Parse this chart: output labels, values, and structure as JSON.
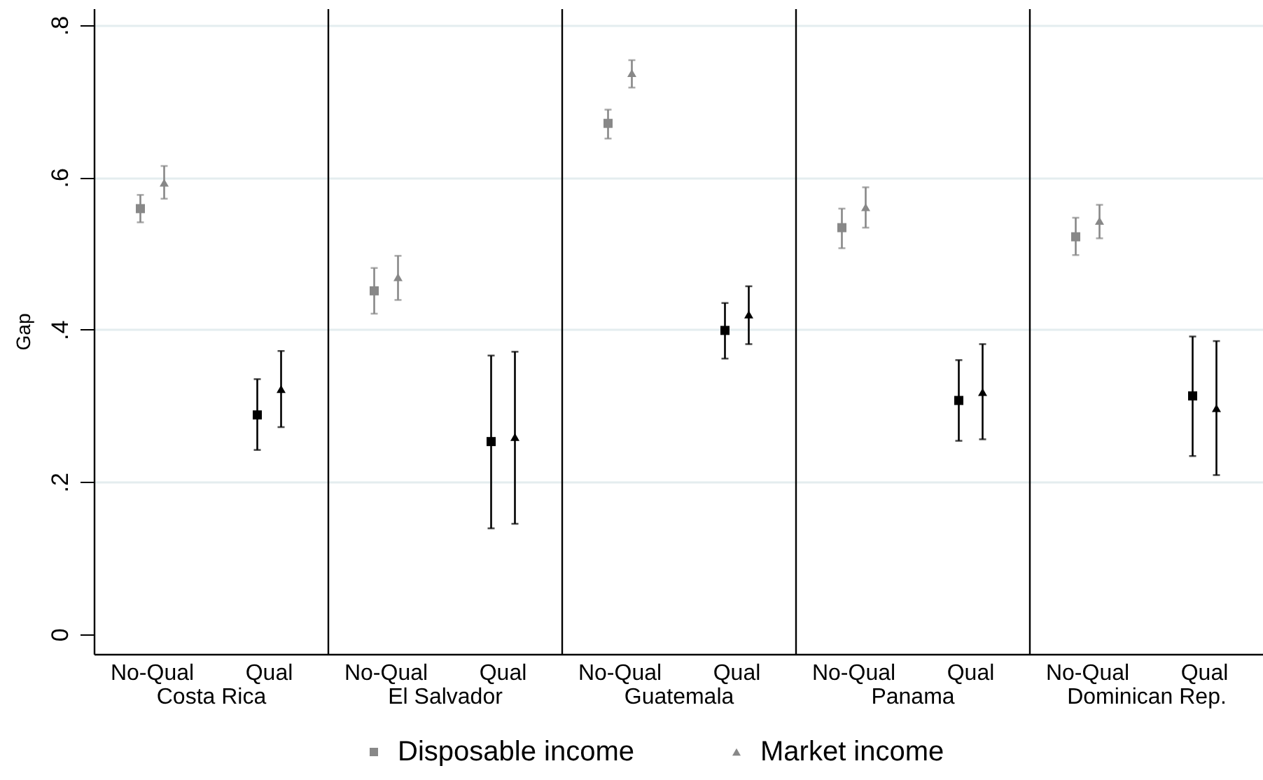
{
  "chart_data": [
    {
      "type": "scatter",
      "categories": [
        "No-Qual",
        "Qual"
      ],
      "xlabel": "Costa Rica",
      "ylabel": "Gap",
      "ylim": [
        -0.026,
        0.822
      ],
      "yticks": [
        0,
        {
          "value": 0.2,
          "label": ".2"
        },
        {
          "value": 0.4,
          "label": ".4"
        },
        {
          "value": 0.6,
          "label": ".6"
        },
        {
          "value": 0.8,
          "label": ".8"
        }
      ],
      "grid": "y",
      "legend": "bottom",
      "series": [
        {
          "name": "Disposable income",
          "color": "#888888",
          "colors": [
            "#888888",
            "#000000"
          ],
          "marker": "square",
          "values": [
            0.559,
            0.288
          ],
          "errors": [
            [
              0.541,
              0.577
            ],
            [
              0.242,
              0.335
            ]
          ]
        },
        {
          "name": "Market income",
          "color": "#888888",
          "colors": [
            "#888888",
            "#000000"
          ],
          "marker": "triangle",
          "values": [
            0.593,
            0.322
          ],
          "errors": [
            [
              0.572,
              0.615
            ],
            [
              0.272,
              0.372
            ]
          ]
        }
      ]
    },
    {
      "type": "scatter",
      "categories": [
        "No-Qual",
        "Qual"
      ],
      "xlabel": "El Salvador",
      "ylim": [
        -0.026,
        0.822
      ],
      "yticks": [
        0,
        0.2,
        0.4,
        0.6,
        0.8
      ],
      "grid": "y",
      "tick_labels": "x",
      "series": [
        {
          "colors": [
            "#888888",
            "#000000"
          ],
          "marker": "square",
          "values": [
            0.451,
            0.253
          ],
          "errors": [
            [
              0.421,
              0.481
            ],
            [
              0.139,
              0.366
            ]
          ]
        },
        {
          "colors": [
            "#888888",
            "#000000"
          ],
          "marker": "triangle",
          "values": [
            0.469,
            0.259
          ],
          "errors": [
            [
              0.439,
              0.497
            ],
            [
              0.145,
              0.371
            ]
          ]
        }
      ]
    },
    {
      "type": "scatter",
      "categories": [
        "No-Qual",
        "Qual"
      ],
      "xlabel": "Guatemala",
      "ylim": [
        -0.026,
        0.822
      ],
      "yticks": [
        0,
        0.2,
        0.4,
        0.6,
        0.8
      ],
      "grid": "y",
      "tick_labels": "x",
      "series": [
        {
          "colors": [
            "#888888",
            "#000000"
          ],
          "marker": "square",
          "values": [
            0.671,
            0.399
          ],
          "errors": [
            [
              0.651,
              0.689
            ],
            [
              0.362,
              0.435
            ]
          ]
        },
        {
          "colors": [
            "#888888",
            "#000000"
          ],
          "marker": "triangle",
          "values": [
            0.737,
            0.42
          ],
          "errors": [
            [
              0.718,
              0.754
            ],
            [
              0.381,
              0.457
            ]
          ]
        }
      ]
    },
    {
      "type": "scatter",
      "categories": [
        "No-Qual",
        "Qual"
      ],
      "xlabel": "Panama",
      "ylim": [
        -0.026,
        0.822
      ],
      "yticks": [
        0,
        0.2,
        0.4,
        0.6,
        0.8
      ],
      "grid": "y",
      "tick_labels": "x",
      "series": [
        {
          "colors": [
            "#888888",
            "#000000"
          ],
          "marker": "square",
          "values": [
            0.534,
            0.307
          ],
          "errors": [
            [
              0.507,
              0.559
            ],
            [
              0.254,
              0.36
            ]
          ]
        },
        {
          "colors": [
            "#888888",
            "#000000"
          ],
          "marker": "triangle",
          "values": [
            0.561,
            0.318
          ],
          "errors": [
            [
              0.534,
              0.587
            ],
            [
              0.256,
              0.381
            ]
          ]
        }
      ]
    },
    {
      "type": "scatter",
      "categories": [
        "No-Qual",
        "Qual"
      ],
      "xlabel": "Dominican Rep.",
      "ylim": [
        -0.026,
        0.822
      ],
      "yticks": [
        0,
        0.2,
        0.4,
        0.6,
        0.8
      ],
      "grid": "y",
      "tick_labels": "x",
      "series": [
        {
          "colors": [
            "#888888",
            "#000000"
          ],
          "marker": "square",
          "values": [
            0.522,
            0.313
          ],
          "errors": [
            [
              0.498,
              0.547
            ],
            [
              0.234,
              0.391
            ]
          ]
        },
        {
          "colors": [
            "#888888",
            "#000000"
          ],
          "marker": "triangle",
          "values": [
            0.543,
            0.297
          ],
          "errors": [
            [
              0.52,
              0.564
            ],
            [
              0.209,
              0.385
            ]
          ]
        }
      ]
    }
  ]
}
